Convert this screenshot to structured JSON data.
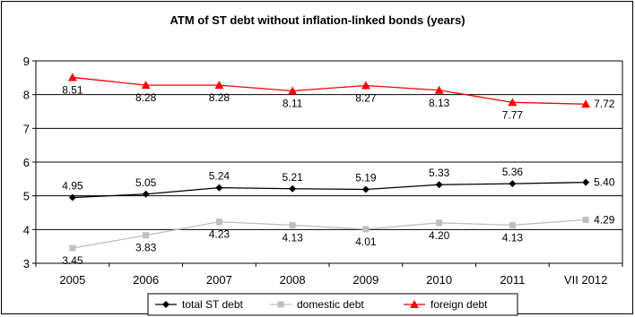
{
  "chart_data": {
    "type": "line",
    "title": "ATM of ST debt without inflation-linked bonds (years)",
    "xlabel": "",
    "ylabel": "",
    "categories": [
      "2005",
      "2006",
      "2007",
      "2008",
      "2009",
      "2010",
      "2011",
      "VII 2012"
    ],
    "ylim": [
      3,
      9
    ],
    "yticks": [
      3,
      4,
      5,
      6,
      7,
      8,
      9
    ],
    "grid": "horizontal",
    "legend": "bottom",
    "series": [
      {
        "name": "total ST debt",
        "color": "#000000",
        "marker": "diamond",
        "values": [
          4.95,
          5.05,
          5.24,
          5.21,
          5.19,
          5.33,
          5.36,
          5.4
        ],
        "labels": [
          "4.95",
          "5.05",
          "5.24",
          "5.21",
          "5.19",
          "5.33",
          "5.36",
          "5.40"
        ]
      },
      {
        "name": "domestic debt",
        "color": "#bfbfbf",
        "marker": "square",
        "values": [
          3.45,
          3.83,
          4.23,
          4.13,
          4.01,
          4.2,
          4.13,
          4.29
        ],
        "labels": [
          "3.45",
          "3.83",
          "4.23",
          "4.13",
          "4.01",
          "4.20",
          "4.13",
          "4.29"
        ]
      },
      {
        "name": "foreign debt",
        "color": "#ff0000",
        "marker": "triangle",
        "values": [
          8.51,
          8.28,
          8.28,
          8.11,
          8.27,
          8.13,
          7.77,
          7.72
        ],
        "labels": [
          "8.51",
          "8.28",
          "8.28",
          "8.11",
          "8.27",
          "8.13",
          "7.77",
          "7.72"
        ]
      }
    ]
  }
}
